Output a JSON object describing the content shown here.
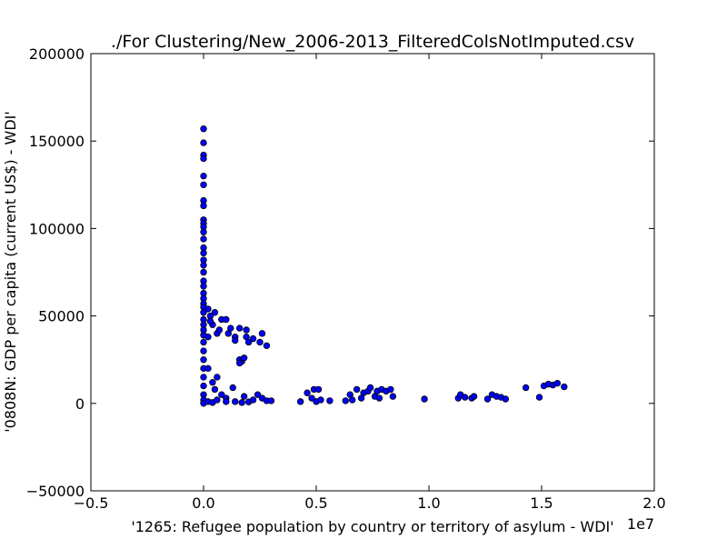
{
  "chart_data": {
    "type": "scatter",
    "title": "./For Clustering/New_2006-2013_FilteredColsNotImputed.csv",
    "x_label": "'1265: Refugee population by country or territory of asylum - WDI'",
    "y_label": "'0808N: GDP per capita  (current US$) - WDI'",
    "x_offset_label": "1e7",
    "xlim": [
      -0.5,
      2.0
    ],
    "xticks": [
      {
        "value": -0.5,
        "label": "−0.5"
      },
      {
        "value": 0,
        "label": "0.0"
      },
      0.5,
      {
        "value": 1,
        "label": "1.0"
      },
      1.5,
      {
        "value": 2,
        "label": "2.0"
      }
    ],
    "ylim": [
      -50000,
      200000
    ],
    "yticks": [
      {
        "value": -50000,
        "label": "−50000"
      },
      0,
      50000,
      100000,
      150000,
      200000
    ],
    "grid": false,
    "x": [
      0,
      0,
      0,
      0,
      0,
      0,
      0,
      0,
      0,
      0,
      0,
      0,
      0,
      0,
      0,
      0,
      0,
      0,
      0,
      0,
      0,
      0,
      0,
      0,
      0,
      0,
      0,
      0,
      0,
      0,
      0,
      0,
      0,
      0,
      0,
      0,
      0,
      0,
      0.02,
      0.03,
      0.04,
      0.05,
      0.06,
      0.07,
      0.02,
      0.03,
      0.08,
      0.1,
      0.12,
      0.11,
      0.14,
      0.16,
      0.14,
      0.19,
      0.19,
      0.2,
      0.22,
      0.25,
      0.26,
      0.28,
      0.16,
      0.17,
      0.18,
      0.16,
      0.02,
      0.04,
      0.05,
      0.08,
      0.1,
      0.13,
      0.06,
      0.1,
      0.14,
      0.17,
      0.2,
      0.22,
      0.24,
      0.26,
      0.28,
      0.3,
      0.18,
      0.02,
      0.04,
      0.06,
      0.43,
      0.46,
      0.48,
      0.49,
      0.5,
      0.51,
      0.52,
      0.56,
      0.63,
      0.65,
      0.66,
      0.68,
      0.7,
      0.71,
      0.73,
      0.74,
      0.76,
      0.77,
      0.78,
      0.79,
      0.81,
      0.83,
      0.84,
      0.98,
      1.13,
      1.14,
      1.16,
      1.19,
      1.2,
      1.26,
      1.28,
      1.3,
      1.32,
      1.34,
      1.43,
      1.49,
      1.51,
      1.53,
      1.55,
      1.57,
      1.6
    ],
    "series": [
      {
        "color": "#0000ff",
        "edge_color": "#000000",
        "values": [
          157000,
          149000,
          142000,
          140000,
          130000,
          125000,
          116000,
          113000,
          105000,
          103000,
          101000,
          98000,
          94000,
          89000,
          86000,
          82000,
          79000,
          75000,
          70000,
          67000,
          63000,
          60000,
          57000,
          55000,
          52000,
          48000,
          45000,
          42000,
          39000,
          35000,
          30000,
          25000,
          20000,
          15000,
          10000,
          5000,
          2000,
          0,
          54000,
          50000,
          45000,
          52000,
          40000,
          42000,
          38000,
          47000,
          48000,
          48000,
          43000,
          40000,
          38000,
          43000,
          36000,
          42000,
          38000,
          35000,
          37000,
          35000,
          40000,
          33000,
          25000,
          24000,
          26000,
          23000,
          20000,
          12000,
          8000,
          5000,
          3000,
          9000,
          15000,
          1000,
          1000,
          500,
          800,
          2000,
          5000,
          3000,
          1500,
          1500,
          4000,
          1000,
          500,
          2000,
          1000,
          6000,
          3000,
          8000,
          1000,
          8000,
          2000,
          1500,
          1500,
          5000,
          2000,
          8000,
          3000,
          6000,
          7000,
          9000,
          4000,
          7000,
          3000,
          8000,
          7000,
          8000,
          4000,
          2500,
          3000,
          5000,
          3500,
          3000,
          4000,
          2500,
          5000,
          4000,
          3500,
          2500,
          9000,
          3500,
          10000,
          11000,
          10500,
          11500,
          9500
        ]
      }
    ]
  }
}
